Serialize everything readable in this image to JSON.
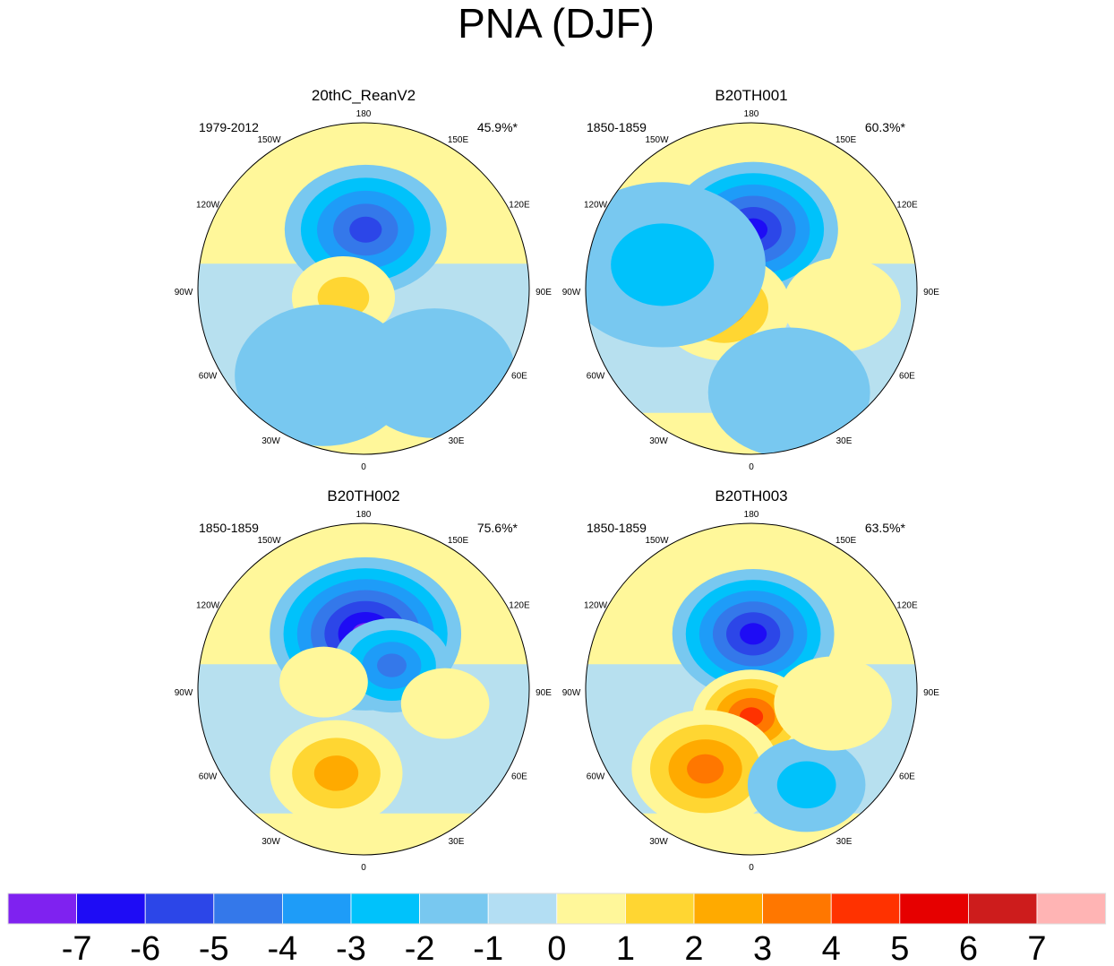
{
  "chart_data": {
    "type": "heatmap",
    "title": "PNA (DJF)",
    "projection": "north polar stereographic",
    "longitude_labels": [
      "180",
      "150E",
      "120E",
      "90E",
      "60E",
      "30E",
      "0",
      "30W",
      "60W",
      "90W",
      "120W",
      "150W"
    ],
    "colorbar": {
      "ticks": [
        "-7",
        "-6",
        "-5",
        "-4",
        "-3",
        "-2",
        "-1",
        "0",
        "1",
        "2",
        "3",
        "4",
        "5",
        "6",
        "7"
      ],
      "colors": [
        "#7f22f0",
        "#1e0cf5",
        "#2c46e8",
        "#3478ea",
        "#1e9cf8",
        "#00c2fb",
        "#78c8f0",
        "#b3def3",
        "#fff79a",
        "#ffd632",
        "#ffaa00",
        "#ff7700",
        "#ff3200",
        "#e60000",
        "#cd1c1c",
        "#ffb4b4"
      ]
    },
    "panels": [
      {
        "title": "20thC_ReanV2",
        "period": "1979-2012",
        "variance": "45.9%*",
        "features": [
          {
            "lon": 178,
            "colat": 32,
            "peak": -5,
            "extent": 22
          },
          {
            "lon": -66,
            "colat": 12,
            "peak": 2,
            "extent": 14
          },
          {
            "lon": -25,
            "colat": 52,
            "peak": -1,
            "extent": 24
          },
          {
            "lon": 40,
            "colat": 60,
            "peak": -1,
            "extent": 22
          }
        ]
      },
      {
        "title": "B20TH001",
        "period": "1850-1859",
        "variance": "60.3%*",
        "features": [
          {
            "lon": 178,
            "colat": 32,
            "peak": -6,
            "extent": 23
          },
          {
            "lon": -55,
            "colat": 18,
            "peak": 3,
            "extent": 18
          },
          {
            "lon": -105,
            "colat": 50,
            "peak": -2,
            "extent": 28
          },
          {
            "lon": 80,
            "colat": 50,
            "peak": 1,
            "extent": 16
          },
          {
            "lon": 20,
            "colat": 60,
            "peak": -1,
            "extent": 22
          }
        ]
      },
      {
        "title": "B20TH002",
        "period": "1850-1859",
        "variance": "75.6%*",
        "features": [
          {
            "lon": 178,
            "colat": 30,
            "peak": -7,
            "extent": 26
          },
          {
            "lon": 130,
            "colat": 20,
            "peak": -4,
            "extent": 16
          },
          {
            "lon": -18,
            "colat": 48,
            "peak": 3,
            "extent": 18
          },
          {
            "lon": -100,
            "colat": 22,
            "peak": 1,
            "extent": 12
          },
          {
            "lon": 80,
            "colat": 45,
            "peak": 1,
            "extent": 12
          }
        ]
      },
      {
        "title": "B20TH003",
        "period": "1850-1859",
        "variance": "63.5%*",
        "features": [
          {
            "lon": 178,
            "colat": 30,
            "peak": -6,
            "extent": 22
          },
          {
            "lon": 0,
            "colat": 15,
            "peak": 5,
            "extent": 16
          },
          {
            "lon": -30,
            "colat": 50,
            "peak": 4,
            "extent": 20
          },
          {
            "lon": 30,
            "colat": 60,
            "peak": -2,
            "extent": 16
          },
          {
            "lon": 80,
            "colat": 45,
            "peak": 1,
            "extent": 16
          }
        ]
      }
    ]
  }
}
